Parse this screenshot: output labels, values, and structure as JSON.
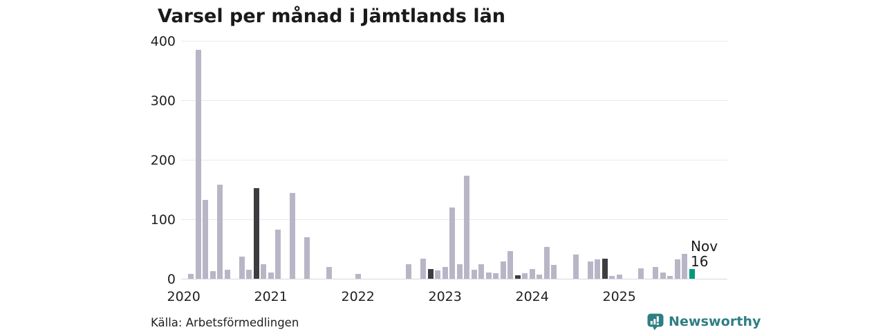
{
  "chart_data": {
    "type": "bar",
    "title": "Varsel per månad i Jämtlands län",
    "source": "Källa: Arbetsförmedlingen",
    "ylim": [
      0,
      400
    ],
    "yticks": [
      0,
      100,
      200,
      300,
      400
    ],
    "grid": true,
    "legend": "none",
    "xtick_labels": [
      "2020",
      "2021",
      "2022",
      "2023",
      "2024",
      "2025"
    ],
    "x": [
      "2020-01",
      "2020-02",
      "2020-03",
      "2020-04",
      "2020-05",
      "2020-06",
      "2020-07",
      "2020-08",
      "2020-09",
      "2020-10",
      "2020-11",
      "2020-12",
      "2021-01",
      "2021-02",
      "2021-03",
      "2021-04",
      "2021-05",
      "2021-06",
      "2021-07",
      "2021-08",
      "2021-09",
      "2021-10",
      "2021-11",
      "2021-12",
      "2022-01",
      "2022-02",
      "2022-03",
      "2022-04",
      "2022-05",
      "2022-06",
      "2022-07",
      "2022-08",
      "2022-09",
      "2022-10",
      "2022-11",
      "2022-12",
      "2023-01",
      "2023-02",
      "2023-03",
      "2023-04",
      "2023-05",
      "2023-06",
      "2023-07",
      "2023-08",
      "2023-09",
      "2023-10",
      "2023-11",
      "2023-12",
      "2024-01",
      "2024-02",
      "2024-03",
      "2024-04",
      "2024-05",
      "2024-06",
      "2024-07",
      "2024-08",
      "2024-09",
      "2024-10",
      "2024-11",
      "2024-12",
      "2025-01",
      "2025-02",
      "2025-03",
      "2025-04",
      "2025-05",
      "2025-06",
      "2025-07",
      "2025-08",
      "2025-09",
      "2025-10",
      "2025-11"
    ],
    "values": [
      0,
      8,
      385,
      132,
      13,
      158,
      15,
      0,
      37,
      15,
      152,
      25,
      10,
      83,
      0,
      144,
      0,
      70,
      0,
      0,
      20,
      0,
      0,
      0,
      8,
      0,
      0,
      0,
      0,
      0,
      0,
      24,
      0,
      34,
      16,
      14,
      20,
      120,
      24,
      173,
      15,
      24,
      10,
      9,
      29,
      47,
      6,
      9,
      16,
      7,
      54,
      23,
      0,
      0,
      41,
      0,
      29,
      33,
      34,
      5,
      7,
      0,
      0,
      17,
      0,
      20,
      11,
      5,
      33,
      42,
      16
    ],
    "bar_color": "#b8b6c6",
    "highlight_color": "#3d3d41",
    "highlight_months": [
      "2020-11",
      "2021-11",
      "2022-11",
      "2023-11",
      "2024-11"
    ],
    "current_month": "2025-11",
    "current_color": "#00997c",
    "annotation": {
      "line1": "Nov",
      "line2": "16"
    }
  },
  "branding": {
    "wordmark": "Newsworthy",
    "color": "#2e7f83"
  }
}
